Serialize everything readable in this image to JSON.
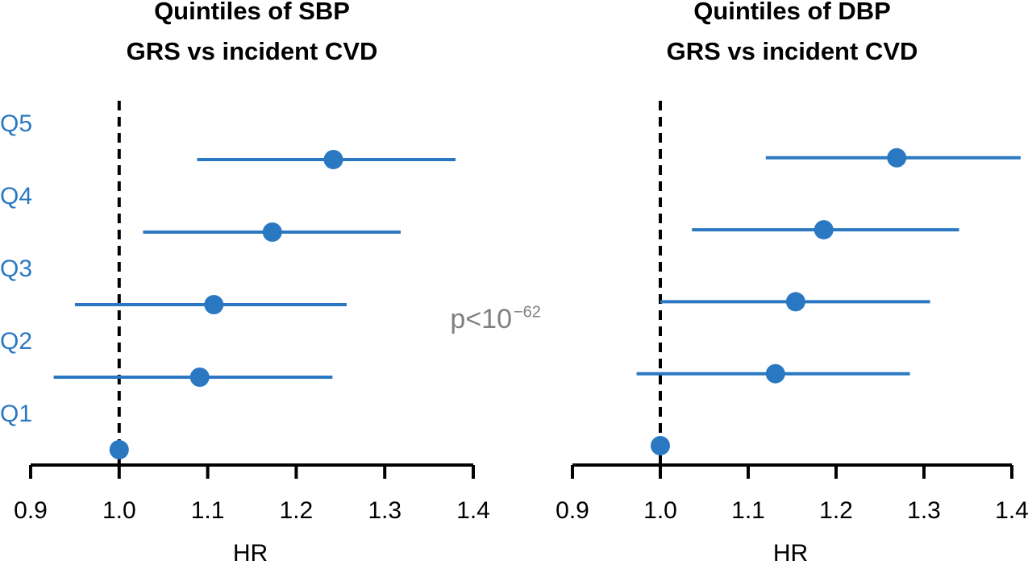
{
  "chart_data": [
    {
      "type": "forest",
      "title": [
        "Quintiles of SBP",
        "GRS vs incident CVD"
      ],
      "categories": [
        "Q1",
        "Q2",
        "Q3",
        "Q4",
        "Q5"
      ],
      "values": [
        1.0,
        1.091,
        1.107,
        1.173,
        1.242
      ],
      "lower": [
        null,
        0.926,
        0.95,
        1.027,
        1.088
      ],
      "upper": [
        null,
        1.241,
        1.257,
        1.318,
        1.38
      ],
      "color": "#2b78c2",
      "xlabel": "HR",
      "refline": 1,
      "xlim": [
        0.9,
        1.4
      ],
      "xticks": [
        0.9,
        {
          "value": 1,
          "label": "1.0"
        },
        1.1,
        1.2,
        1.3,
        1.4
      ]
    },
    {
      "type": "forest",
      "title": [
        "Quintiles of DBP",
        "GRS vs incident CVD"
      ],
      "values": [
        1.0,
        1.131,
        1.154,
        1.186,
        1.269
      ],
      "lower": [
        null,
        0.973,
        1.0,
        1.036,
        1.12
      ],
      "upper": [
        null,
        1.284,
        1.307,
        1.34,
        1.41
      ],
      "color": "#2b78c2",
      "xlabel": "HR",
      "refline": 1,
      "xlim": [
        0.9,
        1.4
      ],
      "xticks": [
        0.9,
        {
          "value": 1,
          "label": "1.0"
        },
        1.1,
        1.2,
        1.3,
        1.4
      ]
    }
  ],
  "annotation": {
    "text": "p<10",
    "exponent": "−62"
  }
}
